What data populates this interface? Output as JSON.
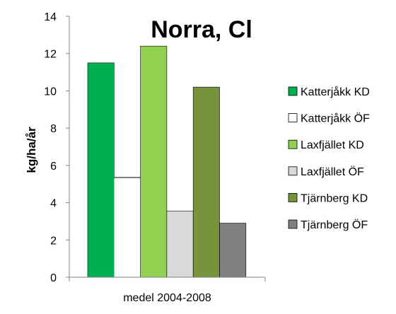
{
  "chart_data": {
    "type": "bar",
    "title": "Norra, Cl",
    "ylabel": "kg/ha/år",
    "xlabel": "",
    "categories": [
      "medel 2004-2008"
    ],
    "ylim": [
      0,
      14
    ],
    "yticks": [
      0,
      2,
      4,
      6,
      8,
      10,
      12,
      14
    ],
    "grid": false,
    "legend_position": "right",
    "series": [
      {
        "name": "Katterjåkk KD",
        "values": [
          11.5
        ],
        "color": "#00b050"
      },
      {
        "name": "Katterjåkk ÖF",
        "values": [
          5.35
        ],
        "color": "#ffffff"
      },
      {
        "name": "Laxfjället KD",
        "values": [
          12.4
        ],
        "color": "#92d050"
      },
      {
        "name": "Laxfjället ÖF",
        "values": [
          3.55
        ],
        "color": "#d9d9d9"
      },
      {
        "name": "Tjärnberg KD",
        "values": [
          10.2
        ],
        "color": "#77933c"
      },
      {
        "name": "Tjärnberg ÖF",
        "values": [
          2.9
        ],
        "color": "#808080"
      }
    ]
  }
}
